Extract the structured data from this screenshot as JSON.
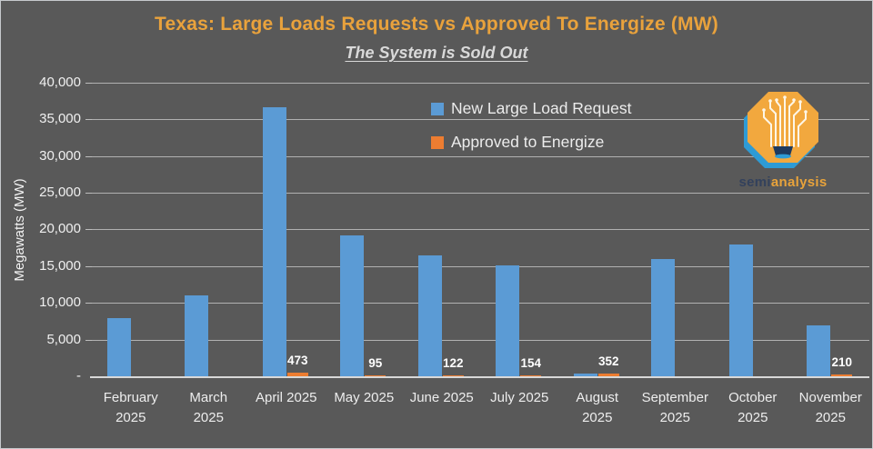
{
  "title": "Texas: Large Loads Requests vs Approved To Energize (MW)",
  "subtitle": "The System is Sold Out",
  "legend": [
    {
      "label": "New Large Load Request",
      "color": "#5B9BD5"
    },
    {
      "label": "Approved to Energize",
      "color": "#ED7D31"
    }
  ],
  "logo": {
    "brand_part1": "semi",
    "brand_part2": "analysis"
  },
  "colors": {
    "background": "#595959",
    "title": "#E9A23C",
    "subtitle": "#D9D9D9",
    "grid": "#CFCFCF",
    "axis_text": "#F0F0F0",
    "blue_series": "#5B9BD5",
    "orange_series": "#ED7D31",
    "logo_gold": "#F2A83E",
    "logo_blue": "#2E9BD5"
  },
  "chart_data": {
    "type": "bar",
    "title": "Texas: Large Loads Requests vs Approved To Energize (MW)",
    "subtitle": "The System is Sold Out",
    "ylabel": "Megawatts (MW)",
    "ylim": [
      0,
      40000
    ],
    "grid": true,
    "legend_position": "top-center",
    "categories": [
      "February 2025",
      "March 2025",
      "April 2025",
      "May 2025",
      "June 2025",
      "July 2025",
      "August 2025",
      "September 2025",
      "October 2025",
      "November 2025"
    ],
    "category_label_lines": [
      [
        "February",
        "2025"
      ],
      [
        "March",
        "2025"
      ],
      [
        "April 2025"
      ],
      [
        "May 2025"
      ],
      [
        "June 2025"
      ],
      [
        "July 2025"
      ],
      [
        "August",
        "2025"
      ],
      [
        "September",
        "2025"
      ],
      [
        "October",
        "2025"
      ],
      [
        "November",
        "2025"
      ]
    ],
    "yticks": [
      {
        "value": 0,
        "label": "-"
      },
      {
        "value": 5000,
        "label": "5,000"
      },
      {
        "value": 10000,
        "label": "10,000"
      },
      {
        "value": 15000,
        "label": "15,000"
      },
      {
        "value": 20000,
        "label": "20,000"
      },
      {
        "value": 25000,
        "label": "25,000"
      },
      {
        "value": 30000,
        "label": "30,000"
      },
      {
        "value": 35000,
        "label": "35,000"
      },
      {
        "value": 40000,
        "label": "40,000"
      }
    ],
    "series": [
      {
        "name": "New Large Load Request",
        "color": "#5B9BD5",
        "values": [
          7900,
          11000,
          36600,
          19200,
          16500,
          15100,
          400,
          16000,
          18000,
          6900
        ]
      },
      {
        "name": "Approved to Energize",
        "color": "#ED7D31",
        "values": [
          null,
          null,
          473,
          95,
          122,
          154,
          352,
          null,
          null,
          210
        ],
        "data_labels": [
          "",
          "",
          "473",
          "95",
          "122",
          "154",
          "352",
          "",
          "",
          "210"
        ]
      }
    ]
  }
}
